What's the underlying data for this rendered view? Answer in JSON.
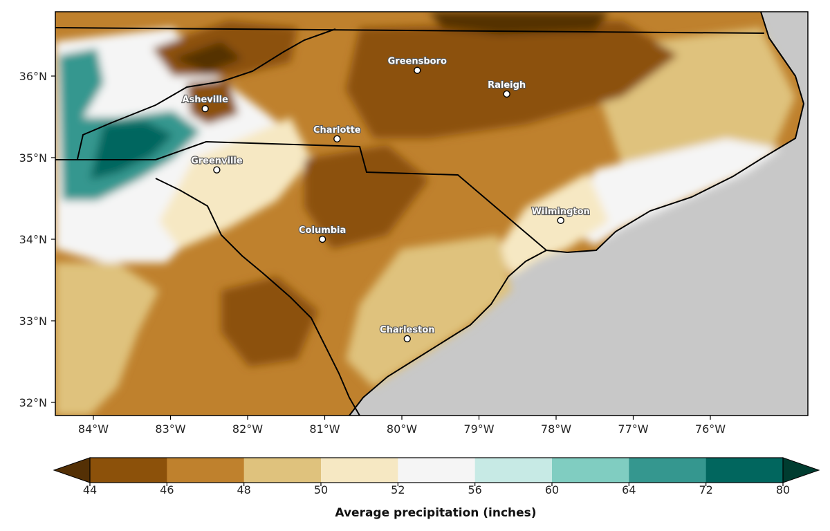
{
  "map": {
    "lon_ticks": [
      "84°W",
      "83°W",
      "82°W",
      "81°W",
      "80°W",
      "79°W",
      "78°W",
      "77°W",
      "76°W"
    ],
    "lat_ticks": [
      "36°N",
      "35°N",
      "34°N",
      "33°N",
      "32°N"
    ],
    "cities": [
      {
        "name": "Asheville",
        "lon": -82.55,
        "lat": 35.6
      },
      {
        "name": "Greensboro",
        "lon": -79.8,
        "lat": 36.07
      },
      {
        "name": "Raleigh",
        "lon": -78.64,
        "lat": 35.78
      },
      {
        "name": "Charlotte",
        "lon": -80.84,
        "lat": 35.23
      },
      {
        "name": "Greenville",
        "lon": -82.4,
        "lat": 34.85
      },
      {
        "name": "Columbia",
        "lon": -81.03,
        "lat": 34.0
      },
      {
        "name": "Wilmington",
        "lon": -77.94,
        "lat": 34.23
      },
      {
        "name": "Charleston",
        "lon": -79.93,
        "lat": 32.78
      }
    ],
    "colors": {
      "ocean": "#c8c8c8",
      "bins": [
        "#8c510a",
        "#bf812d",
        "#dfc27d",
        "#f6e8c3",
        "#f5f5f5",
        "#c7eae5",
        "#80cdc1",
        "#35978f",
        "#01665e"
      ],
      "under": "#543005",
      "over": "#003c30"
    }
  },
  "colorbar": {
    "ticks": [
      "44",
      "46",
      "48",
      "50",
      "52",
      "56",
      "60",
      "64",
      "72",
      "80"
    ],
    "title": "Average precipitation (inches)"
  }
}
